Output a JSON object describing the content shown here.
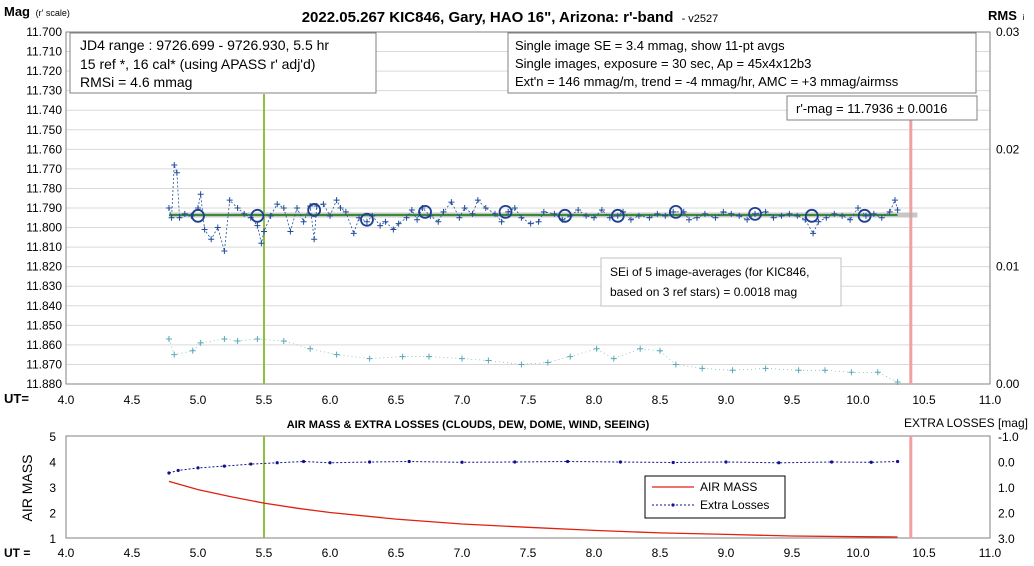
{
  "top_chart": {
    "title": "2022.05.267 KIC846, Gary, HAO 16\", Arizona: r'-band",
    "version": "- v2527",
    "y_label_main": "Mag",
    "y_label_sub": "(r' scale)",
    "right_label_main": "RMS",
    "right_label_sub": "i",
    "x_prefix": "UT=",
    "info_box_1": [
      "JD4 range : 9726.699 - 9726.930,  5.5  hr",
      "15 ref *, 16 cal* (using APASS r' adj'd)",
      "RMSi = 4.6 mmag"
    ],
    "info_box_2": [
      "Single image SE = 3.4 mmag, show  11-pt avgs",
      "Single images, exposure = 30 sec, Ap = 45x4x12b3",
      "Ext'n = 146 mmag/m, trend = -4  mmag/hr, AMC = +3 mmag/airmss"
    ],
    "mag_box": "r'-mag = 11.7936 ± 0.0016",
    "sei_box": [
      "SEi of 5 image-averages (for KIC846,",
      "based on 3 ref stars) = 0.0018 mag"
    ]
  },
  "bottom_chart": {
    "title": "AIR MASS & EXTRA LOSSES (CLOUDS, DEW, DOME, WIND, SEEING)",
    "right_title": "EXTRA LOSSES [mag]",
    "y_label": "AIR MASS",
    "x_prefix": "UT =",
    "legend_airmass": "AIR MASS",
    "legend_extra": "Extra Losses"
  },
  "colors": {
    "mag_series": "#1f4e9c",
    "rms_series": "#5aa8b8",
    "average_circle": "#1f3f8f",
    "fit_line": "#3a8a3a",
    "vline_green": "#8fbf40",
    "vline_pink": "#f0a0a0",
    "airmass": "#e02010",
    "extra": "#10108f",
    "grid": "#d9d9d9"
  },
  "chart_data": [
    {
      "type": "scatter",
      "name": "magnitude-light-curve",
      "x_axis": {
        "ticks": [
          "4.0",
          "4.5",
          "5.0",
          "5.5",
          "6.0",
          "6.5",
          "7.0",
          "7.5",
          "8.0",
          "8.5",
          "9.0",
          "9.5",
          "10.0",
          "10.5",
          "11.0"
        ],
        "range": [
          4.0,
          11.0
        ]
      },
      "y_axis": {
        "range": [
          11.7,
          11.88
        ],
        "inverted": true,
        "ticks": [
          "11.700",
          "11.710",
          "11.720",
          "11.730",
          "11.740",
          "11.750",
          "11.760",
          "11.770",
          "11.780",
          "11.790",
          "11.800",
          "11.810",
          "11.820",
          "11.830",
          "11.840",
          "11.850",
          "11.860",
          "11.870",
          "11.880"
        ]
      },
      "y2_axis": {
        "range": [
          0,
          0.03
        ],
        "ticks": [
          "0.00",
          "0.01",
          "0.02",
          "0.03"
        ]
      },
      "grid": true,
      "vertical_markers": [
        5.5,
        10.4
      ],
      "fit_mag": 11.7936,
      "mag_points": [
        [
          4.78,
          11.79
        ],
        [
          4.8,
          11.795
        ],
        [
          4.82,
          11.768
        ],
        [
          4.84,
          11.772
        ],
        [
          4.86,
          11.795
        ],
        [
          4.9,
          11.793
        ],
        [
          4.95,
          11.794
        ],
        [
          5.0,
          11.79
        ],
        [
          5.02,
          11.783
        ],
        [
          5.05,
          11.801
        ],
        [
          5.1,
          11.806
        ],
        [
          5.15,
          11.8
        ],
        [
          5.2,
          11.812
        ],
        [
          5.24,
          11.786
        ],
        [
          5.3,
          11.79
        ],
        [
          5.35,
          11.793
        ],
        [
          5.4,
          11.795
        ],
        [
          5.45,
          11.799
        ],
        [
          5.48,
          11.808
        ],
        [
          5.5,
          11.802
        ],
        [
          5.55,
          11.794
        ],
        [
          5.6,
          11.788
        ],
        [
          5.65,
          11.79
        ],
        [
          5.7,
          11.802
        ],
        [
          5.75,
          11.79
        ],
        [
          5.8,
          11.797
        ],
        [
          5.85,
          11.789
        ],
        [
          5.88,
          11.806
        ],
        [
          5.9,
          11.789
        ],
        [
          5.95,
          11.788
        ],
        [
          6.0,
          11.794
        ],
        [
          6.05,
          11.786
        ],
        [
          6.08,
          11.79
        ],
        [
          6.12,
          11.792
        ],
        [
          6.18,
          11.803
        ],
        [
          6.22,
          11.795
        ],
        [
          6.28,
          11.797
        ],
        [
          6.32,
          11.794
        ],
        [
          6.38,
          11.799
        ],
        [
          6.42,
          11.797
        ],
        [
          6.48,
          11.801
        ],
        [
          6.52,
          11.798
        ],
        [
          6.58,
          11.795
        ],
        [
          6.62,
          11.791
        ],
        [
          6.66,
          11.796
        ],
        [
          6.7,
          11.79
        ],
        [
          6.76,
          11.794
        ],
        [
          6.82,
          11.797
        ],
        [
          6.86,
          11.792
        ],
        [
          6.92,
          11.787
        ],
        [
          6.98,
          11.795
        ],
        [
          7.02,
          11.79
        ],
        [
          7.08,
          11.793
        ],
        [
          7.12,
          11.786
        ],
        [
          7.18,
          11.79
        ],
        [
          7.25,
          11.793
        ],
        [
          7.3,
          11.797
        ],
        [
          7.35,
          11.792
        ],
        [
          7.4,
          11.79
        ],
        [
          7.45,
          11.795
        ],
        [
          7.52,
          11.798
        ],
        [
          7.58,
          11.797
        ],
        [
          7.62,
          11.792
        ],
        [
          7.7,
          11.793
        ],
        [
          7.76,
          11.796
        ],
        [
          7.82,
          11.794
        ],
        [
          7.88,
          11.791
        ],
        [
          7.94,
          11.794
        ],
        [
          8.0,
          11.795
        ],
        [
          8.06,
          11.791
        ],
        [
          8.12,
          11.795
        ],
        [
          8.18,
          11.794
        ],
        [
          8.22,
          11.792
        ],
        [
          8.28,
          11.796
        ],
        [
          8.34,
          11.794
        ],
        [
          8.42,
          11.795
        ],
        [
          8.48,
          11.793
        ],
        [
          8.54,
          11.794
        ],
        [
          8.6,
          11.792
        ],
        [
          8.68,
          11.792
        ],
        [
          8.72,
          11.796
        ],
        [
          8.78,
          11.795
        ],
        [
          8.84,
          11.793
        ],
        [
          8.92,
          11.795
        ],
        [
          8.98,
          11.792
        ],
        [
          9.04,
          11.793
        ],
        [
          9.1,
          11.794
        ],
        [
          9.16,
          11.796
        ],
        [
          9.22,
          11.793
        ],
        [
          9.3,
          11.792
        ],
        [
          9.36,
          11.795
        ],
        [
          9.42,
          11.794
        ],
        [
          9.48,
          11.793
        ],
        [
          9.54,
          11.794
        ],
        [
          9.6,
          11.796
        ],
        [
          9.66,
          11.803
        ],
        [
          9.7,
          11.797
        ],
        [
          9.76,
          11.795
        ],
        [
          9.82,
          11.793
        ],
        [
          9.88,
          11.794
        ],
        [
          9.94,
          11.796
        ],
        [
          10.0,
          11.79
        ],
        [
          10.06,
          11.794
        ],
        [
          10.12,
          11.793
        ],
        [
          10.18,
          11.795
        ],
        [
          10.24,
          11.792
        ],
        [
          10.28,
          11.786
        ],
        [
          10.3,
          11.791
        ]
      ],
      "average_points": [
        [
          5.0,
          11.794
        ],
        [
          5.45,
          11.794
        ],
        [
          5.88,
          11.791
        ],
        [
          6.28,
          11.796
        ],
        [
          6.72,
          11.792
        ],
        [
          7.33,
          11.792
        ],
        [
          7.78,
          11.794
        ],
        [
          8.18,
          11.794
        ],
        [
          8.62,
          11.792
        ],
        [
          9.22,
          11.793
        ],
        [
          9.65,
          11.794
        ],
        [
          10.05,
          11.794
        ]
      ],
      "rms_points": [
        [
          4.78,
          11.857
        ],
        [
          4.82,
          11.865
        ],
        [
          4.96,
          11.863
        ],
        [
          5.02,
          11.859
        ],
        [
          5.2,
          11.857
        ],
        [
          5.3,
          11.858
        ],
        [
          5.45,
          11.857
        ],
        [
          5.65,
          11.858
        ],
        [
          5.85,
          11.862
        ],
        [
          6.05,
          11.865
        ],
        [
          6.3,
          11.867
        ],
        [
          6.55,
          11.866
        ],
        [
          6.75,
          11.866
        ],
        [
          7.0,
          11.867
        ],
        [
          7.2,
          11.868
        ],
        [
          7.45,
          11.87
        ],
        [
          7.65,
          11.869
        ],
        [
          7.82,
          11.866
        ],
        [
          8.02,
          11.862
        ],
        [
          8.15,
          11.867
        ],
        [
          8.35,
          11.862
        ],
        [
          8.5,
          11.863
        ],
        [
          8.62,
          11.87
        ],
        [
          8.82,
          11.872
        ],
        [
          9.05,
          11.873
        ],
        [
          9.3,
          11.872
        ],
        [
          9.55,
          11.873
        ],
        [
          9.75,
          11.873
        ],
        [
          9.95,
          11.874
        ],
        [
          10.15,
          11.874
        ],
        [
          10.3,
          11.879
        ]
      ]
    },
    {
      "type": "line",
      "name": "air-mass-and-extra-losses",
      "x_axis": {
        "ticks": [
          "4.0",
          "4.5",
          "5.0",
          "5.5",
          "6.0",
          "6.5",
          "7.0",
          "7.5",
          "8.0",
          "8.5",
          "9.0",
          "9.5",
          "10.0",
          "10.5",
          "11.0"
        ],
        "range": [
          4.0,
          11.0
        ]
      },
      "y_axis": {
        "label": "AIR MASS",
        "range": [
          1,
          5
        ],
        "ticks": [
          "1",
          "2",
          "3",
          "4",
          "5"
        ]
      },
      "y2_axis": {
        "label": "EXTRA LOSSES [mag]",
        "range": [
          -1.0,
          3.0
        ],
        "inverted": true,
        "ticks": [
          "-1.0",
          "0.0",
          "1.0",
          "2.0",
          "3.0"
        ]
      },
      "legend": "center-right",
      "series": [
        {
          "name": "AIR MASS",
          "axis": "left",
          "points": [
            [
              4.78,
              3.22
            ],
            [
              5.0,
              2.9
            ],
            [
              5.25,
              2.62
            ],
            [
              5.5,
              2.37
            ],
            [
              5.75,
              2.17
            ],
            [
              6.0,
              2.0
            ],
            [
              6.5,
              1.74
            ],
            [
              7.0,
              1.55
            ],
            [
              7.5,
              1.42
            ],
            [
              8.0,
              1.3
            ],
            [
              8.5,
              1.2
            ],
            [
              9.0,
              1.14
            ],
            [
              9.5,
              1.08
            ],
            [
              10.0,
              1.05
            ],
            [
              10.3,
              1.04
            ]
          ]
        },
        {
          "name": "Extra Losses",
          "axis": "right",
          "points": [
            [
              4.78,
              0.45
            ],
            [
              4.85,
              0.35
            ],
            [
              5.0,
              0.25
            ],
            [
              5.2,
              0.18
            ],
            [
              5.4,
              0.1
            ],
            [
              5.6,
              0.05
            ],
            [
              5.8,
              0.0
            ],
            [
              6.0,
              0.05
            ],
            [
              6.3,
              0.02
            ],
            [
              6.6,
              0.0
            ],
            [
              7.0,
              0.03
            ],
            [
              7.4,
              0.02
            ],
            [
              7.8,
              0.0
            ],
            [
              8.2,
              0.02
            ],
            [
              8.6,
              0.04
            ],
            [
              9.0,
              0.02
            ],
            [
              9.4,
              0.05
            ],
            [
              9.8,
              0.02
            ],
            [
              10.1,
              0.03
            ],
            [
              10.3,
              0.0
            ]
          ]
        }
      ]
    }
  ]
}
